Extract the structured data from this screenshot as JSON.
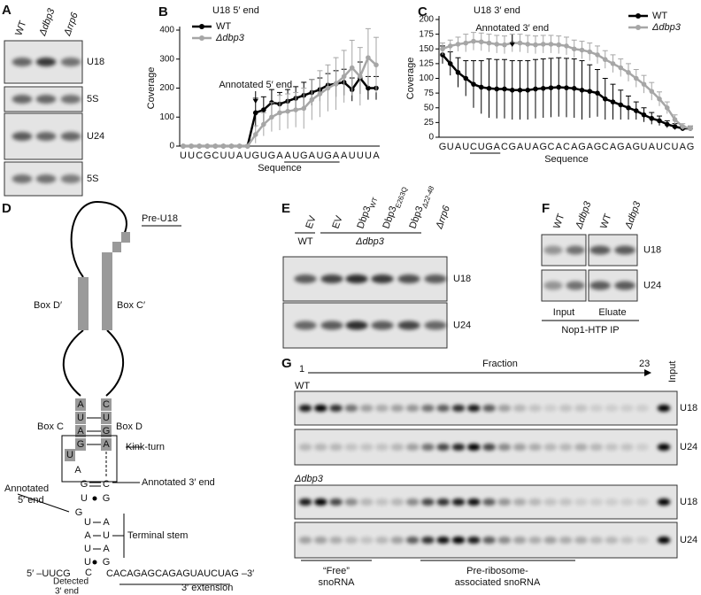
{
  "panels": {
    "A": "A",
    "D": "D",
    "E": "E",
    "F": "F",
    "G": "G"
  },
  "gel_a": {
    "lanes": [
      "WT",
      "Δdbp3",
      "Δrrp6"
    ],
    "rows": [
      "U18",
      "5S",
      "U24",
      "5S"
    ]
  },
  "diagram": {
    "title": "Pre-U18",
    "box_d_prime": "Box D′",
    "box_c_prime": "Box C′",
    "box_c": "Box C",
    "box_d": "Box D",
    "kink_turn": "Kink-turn",
    "annotated_3": "Annotated 3′ end",
    "annotated_5": [
      "Annotated",
      "5′ end"
    ],
    "terminal_stem": "Terminal stem",
    "five_prime": "5′ –UUCG",
    "three_prime_seq": "ACAGAGCAGAGUAUCUAG –3′",
    "detected": [
      "Detected",
      "3′ end"
    ],
    "extension": "3′ extension",
    "nucleotides": [
      "A",
      "C",
      "U",
      "U",
      "A",
      "G",
      "G",
      "A",
      "U",
      "A",
      "G",
      "C",
      "U",
      "G",
      "G",
      "U",
      "A",
      "A",
      "U",
      "U",
      "A",
      "U",
      "G",
      "C",
      "C"
    ]
  },
  "gel_e": {
    "lanes": [
      {
        "name": "EV"
      },
      {
        "name": "EV"
      },
      {
        "name": "Dbp3",
        "sub": "WT"
      },
      {
        "name": "Dbp3",
        "sub": "E263Q"
      },
      {
        "name": "Dbp3",
        "sub": "Δ22-48"
      },
      {
        "name": "Δrrp6"
      }
    ],
    "strains": [
      "WT",
      "Δdbp3"
    ],
    "rows": [
      "U18",
      "U24"
    ]
  },
  "gel_f": {
    "lanes": [
      "WT",
      "Δdbp3",
      "WT",
      "Δdbp3"
    ],
    "rows": [
      "U18",
      "U24"
    ],
    "groups": [
      "Input",
      "Eluate"
    ],
    "footer": "Nop1-HTP IP"
  },
  "gel_g": {
    "start": "1",
    "axis": "Fraction",
    "end": "23",
    "input": "Input",
    "strains": [
      "WT",
      "Δdbp3"
    ],
    "rows": [
      "U18",
      "U24"
    ],
    "free": [
      "“Free”",
      "snoRNA"
    ],
    "assoc": [
      "Pre-ribosome-",
      "associated snoRNA"
    ]
  },
  "chart_data": [
    {
      "type": "line",
      "panel": "B",
      "title": "U18 5′ end",
      "xlabel": "Sequence",
      "ylabel": "Coverage",
      "categories": [
        "U",
        "U",
        "C",
        "G",
        "C",
        "U",
        "U",
        "A",
        "U",
        "G",
        "U",
        "G",
        "A",
        "A",
        "U",
        "G",
        "A",
        "U",
        "G",
        "A",
        "A",
        "U",
        "U",
        "U",
        "A"
      ],
      "underline": [
        13,
        19
      ],
      "annotation": {
        "text": "Annotated 5′ end",
        "x": 9
      },
      "ylim": [
        0,
        400
      ],
      "yticks": [
        0,
        100,
        200,
        300,
        400
      ],
      "legend": "upper left",
      "series": [
        {
          "name": "WT",
          "color": "#000000",
          "values": [
            0,
            0,
            0,
            0,
            0,
            0,
            0,
            0,
            0,
            115,
            125,
            150,
            145,
            155,
            165,
            175,
            185,
            195,
            210,
            215,
            220,
            195,
            235,
            200,
            200
          ],
          "errors": [
            0,
            0,
            0,
            0,
            0,
            0,
            0,
            0,
            0,
            50,
            45,
            45,
            40,
            40,
            40,
            45,
            45,
            40,
            40,
            45,
            45,
            40,
            55,
            40,
            40
          ]
        },
        {
          "name": "Δdbp3",
          "color": "#a6a6a6",
          "values": [
            0,
            0,
            0,
            0,
            0,
            0,
            0,
            0,
            0,
            40,
            75,
            100,
            115,
            120,
            125,
            130,
            160,
            180,
            200,
            215,
            240,
            270,
            240,
            305,
            280
          ],
          "errors": [
            0,
            0,
            0,
            0,
            0,
            0,
            0,
            0,
            0,
            30,
            40,
            50,
            60,
            60,
            60,
            70,
            70,
            80,
            80,
            90,
            90,
            95,
            100,
            100,
            95
          ]
        }
      ]
    },
    {
      "type": "line",
      "panel": "C",
      "title": "U18 3′ end",
      "xlabel": "Sequence",
      "ylabel": "Coverage",
      "categories": [
        "G",
        "U",
        "A",
        "U",
        "C",
        "U",
        "G",
        "A",
        "C",
        "G",
        "A",
        "U",
        "A",
        "G",
        "C",
        "A",
        "C",
        "A",
        "G",
        "A",
        "G",
        "C",
        "A",
        "G",
        "A",
        "G",
        "U",
        "A",
        "U",
        "C",
        "U",
        "A",
        "G"
      ],
      "underline": [
        4,
        7
      ],
      "annotation": {
        "text": "Annotated 3′ end",
        "x": 9
      },
      "ylim": [
        0,
        200
      ],
      "yticks": [
        0,
        25,
        50,
        75,
        100,
        125,
        150,
        175,
        200
      ],
      "legend": "upper right",
      "series": [
        {
          "name": "WT",
          "color": "#000000",
          "values": [
            140,
            125,
            110,
            100,
            90,
            85,
            83,
            82,
            82,
            80,
            80,
            80,
            82,
            83,
            84,
            85,
            84,
            83,
            80,
            78,
            75,
            65,
            60,
            55,
            50,
            45,
            38,
            32,
            28,
            22,
            18,
            15,
            15
          ],
          "errors": [
            15,
            20,
            25,
            30,
            40,
            45,
            50,
            50,
            50,
            50,
            50,
            50,
            50,
            50,
            50,
            50,
            50,
            50,
            50,
            45,
            40,
            35,
            30,
            25,
            20,
            15,
            12,
            10,
            8,
            6,
            5,
            4,
            4
          ]
        },
        {
          "name": "Δdbp3",
          "color": "#a6a6a6",
          "values": [
            150,
            155,
            158,
            160,
            163,
            162,
            160,
            158,
            157,
            160,
            160,
            158,
            157,
            158,
            158,
            157,
            155,
            150,
            148,
            145,
            140,
            132,
            125,
            118,
            110,
            100,
            90,
            78,
            65,
            50,
            30,
            18,
            15
          ],
          "errors": [
            10,
            10,
            12,
            15,
            15,
            15,
            15,
            15,
            15,
            15,
            15,
            15,
            15,
            15,
            15,
            15,
            15,
            15,
            15,
            15,
            15,
            15,
            15,
            15,
            15,
            15,
            15,
            15,
            12,
            10,
            8,
            5,
            4
          ]
        }
      ]
    }
  ]
}
